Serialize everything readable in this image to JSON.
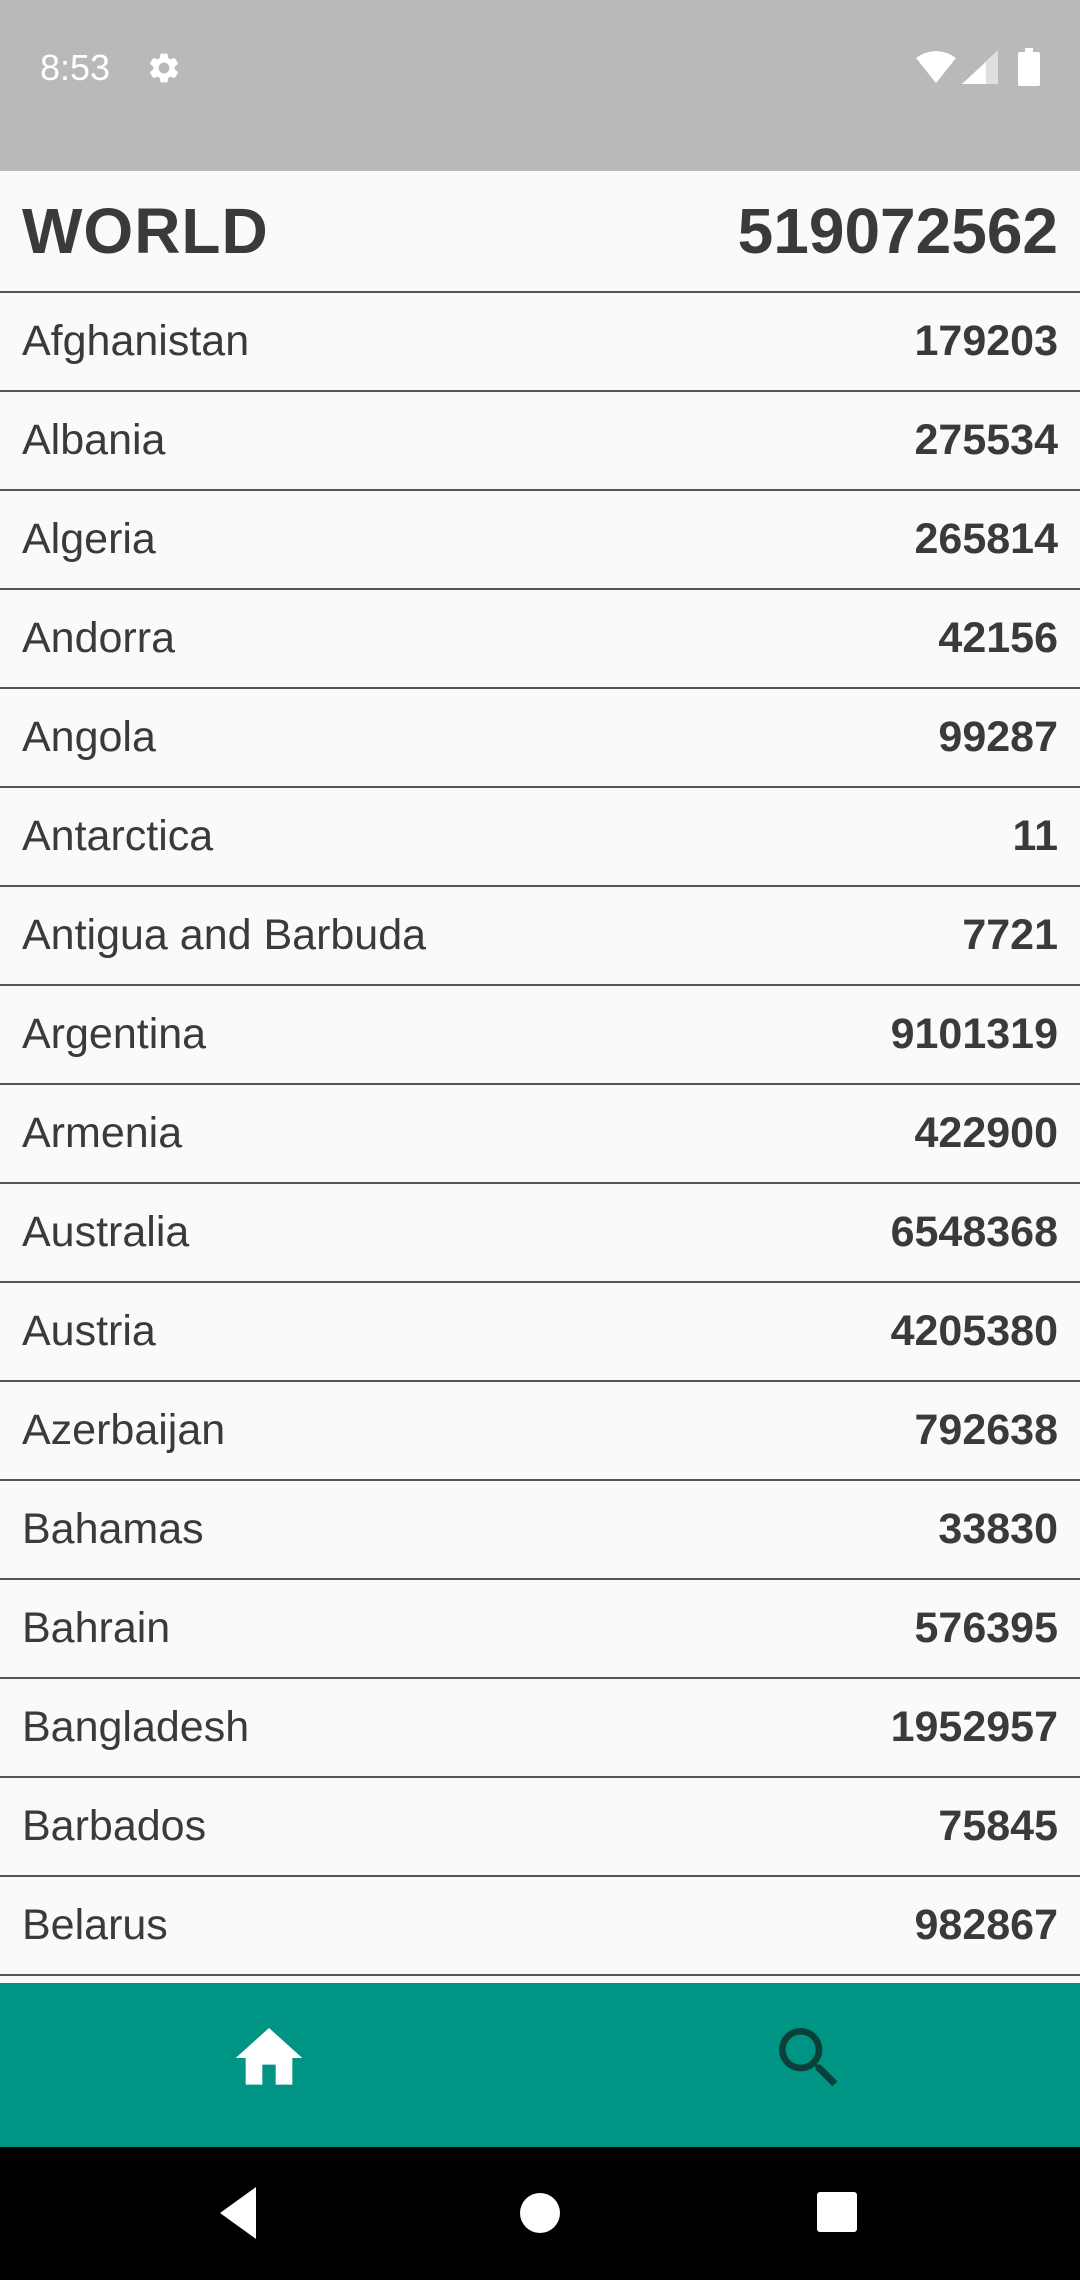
{
  "status_bar": {
    "time": "8:53",
    "icons": [
      "gear-icon",
      "wifi-icon",
      "signal-icon",
      "battery-icon"
    ]
  },
  "world": {
    "label": "WORLD",
    "value": "519072562"
  },
  "countries": [
    {
      "name": "Afghanistan",
      "value": "179203"
    },
    {
      "name": "Albania",
      "value": "275534"
    },
    {
      "name": "Algeria",
      "value": "265814"
    },
    {
      "name": "Andorra",
      "value": "42156"
    },
    {
      "name": "Angola",
      "value": "99287"
    },
    {
      "name": "Antarctica",
      "value": "11"
    },
    {
      "name": "Antigua and Barbuda",
      "value": "7721"
    },
    {
      "name": "Argentina",
      "value": "9101319"
    },
    {
      "name": "Armenia",
      "value": "422900"
    },
    {
      "name": "Australia",
      "value": "6548368"
    },
    {
      "name": "Austria",
      "value": "4205380"
    },
    {
      "name": "Azerbaijan",
      "value": "792638"
    },
    {
      "name": "Bahamas",
      "value": "33830"
    },
    {
      "name": "Bahrain",
      "value": "576395"
    },
    {
      "name": "Bangladesh",
      "value": "1952957"
    },
    {
      "name": "Barbados",
      "value": "75845"
    },
    {
      "name": "Belarus",
      "value": "982867"
    }
  ],
  "bottom_nav": {
    "items": [
      {
        "icon": "home-icon",
        "active": true
      },
      {
        "icon": "search-icon",
        "active": false
      }
    ]
  },
  "colors": {
    "status_bar": "#b9b9b9",
    "bottom_nav": "#009484",
    "nav_active_icon": "#ffffff",
    "nav_inactive_icon": "#0b3f3a",
    "text": "#3a3a3a",
    "divider": "#555555"
  }
}
